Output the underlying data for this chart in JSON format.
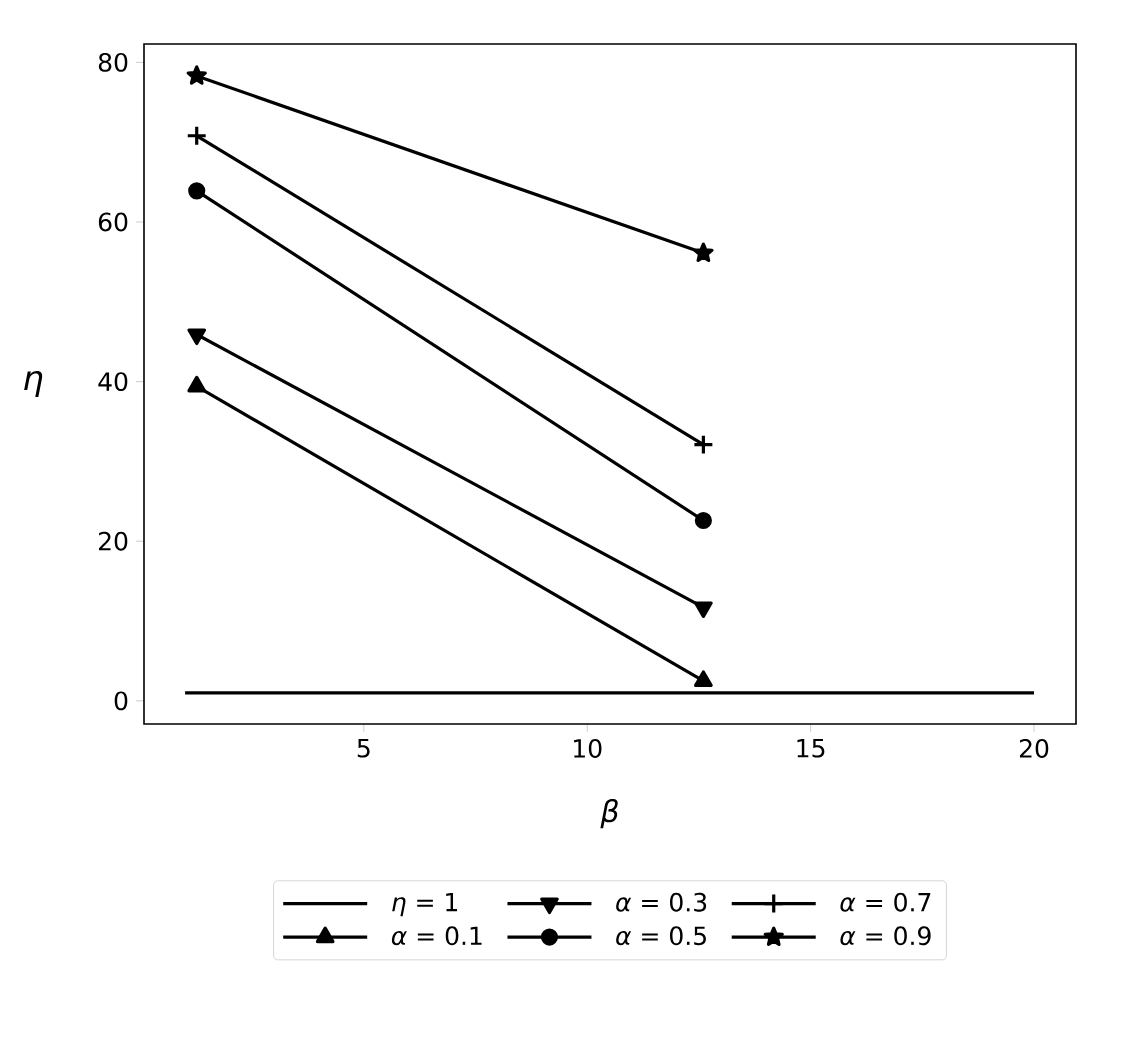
{
  "chart_data": {
    "type": "line",
    "xlabel": "β",
    "ylabel": "η",
    "xlim": [
      0.08,
      20.94
    ],
    "ylim": [
      -2.9,
      82.3
    ],
    "xticks": [
      5,
      10,
      15,
      20
    ],
    "yticks": [
      0,
      20,
      40,
      60,
      80
    ],
    "legend": "bottom",
    "line_style": "solid",
    "series": [
      {
        "name": "*η* = 1",
        "color": "#000000",
        "marker": "none",
        "x": [
          1,
          20
        ],
        "values": [
          1,
          1
        ]
      },
      {
        "name": "*α* = 0.1",
        "color": "#000000",
        "marker": "triangle",
        "x": [
          1.26,
          12.6
        ],
        "values": [
          39.4,
          2.5
        ]
      },
      {
        "name": "*α* = 0.3",
        "color": "#000000",
        "marker": "triangle_down",
        "x": [
          1.26,
          12.6
        ],
        "values": [
          45.9,
          11.7
        ]
      },
      {
        "name": "*α* = 0.5",
        "color": "#000000",
        "marker": "circle",
        "x": [
          1.26,
          12.6
        ],
        "values": [
          63.9,
          22.6
        ]
      },
      {
        "name": "*α* = 0.7",
        "color": "#000000",
        "marker": "plus",
        "x": [
          1.26,
          12.6
        ],
        "values": [
          70.8,
          32.1
        ]
      },
      {
        "name": "*α* = 0.9",
        "color": "#000000",
        "marker": "star",
        "x": [
          1.26,
          12.6
        ],
        "values": [
          78.3,
          56.1
        ]
      }
    ]
  }
}
